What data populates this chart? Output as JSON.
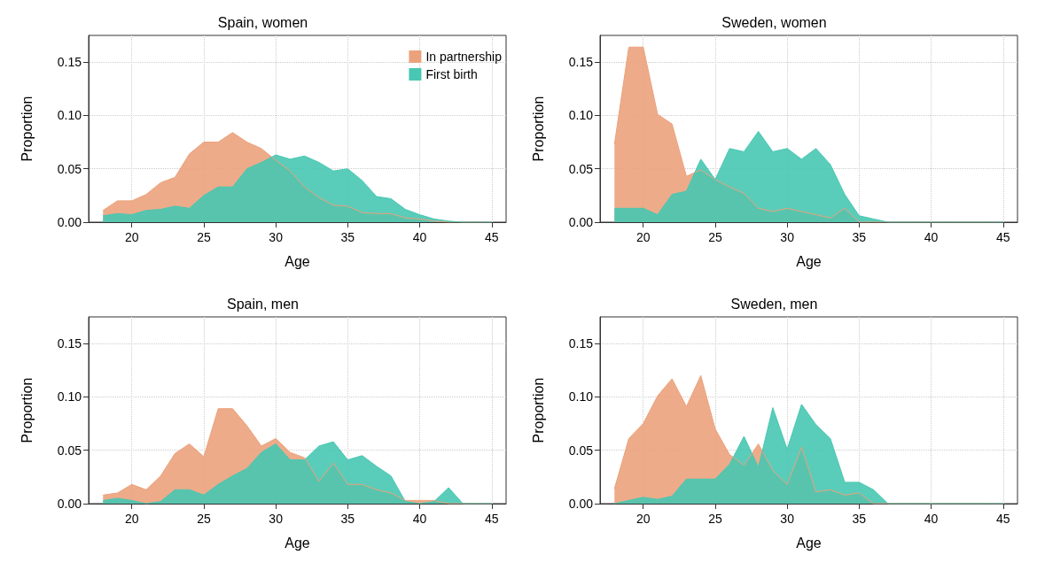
{
  "chart_data": [
    {
      "type": "area",
      "title": "Spain, women",
      "xlabel": "Age",
      "ylabel": "Proportion",
      "xlim": [
        17,
        46
      ],
      "xticks": [
        20,
        25,
        30,
        35,
        40,
        45
      ],
      "ylim": [
        0,
        0.175
      ],
      "yticks": [
        {
          "value": 0,
          "label": "0.00"
        },
        {
          "value": 0.05,
          "label": "0.05"
        },
        {
          "value": 0.1,
          "label": "0.10"
        },
        {
          "value": 0.15,
          "label": "0.15"
        }
      ],
      "grid": true,
      "legend": "top right",
      "x": [
        18,
        19,
        20,
        21,
        22,
        23,
        24,
        25,
        26,
        27,
        28,
        29,
        30,
        31,
        32,
        33,
        34,
        35,
        36,
        37,
        38,
        39,
        40,
        41,
        42,
        43,
        44,
        45
      ],
      "series": [
        {
          "name": "In partnership",
          "color": "#eba27c",
          "values": [
            0.011,
            0.02,
            0.02,
            0.026,
            0.037,
            0.042,
            0.064,
            0.075,
            0.075,
            0.084,
            0.075,
            0.069,
            0.058,
            0.048,
            0.033,
            0.023,
            0.016,
            0.015,
            0.009,
            0.008,
            0.008,
            0.004,
            0.003,
            0.001,
            0,
            0,
            0,
            0
          ]
        },
        {
          "name": "First birth",
          "color": "#48c7b2",
          "values": [
            0.006,
            0.008,
            0.007,
            0.011,
            0.012,
            0.015,
            0.013,
            0.025,
            0.033,
            0.033,
            0.05,
            0.056,
            0.063,
            0.059,
            0.062,
            0.056,
            0.048,
            0.05,
            0.039,
            0.024,
            0.022,
            0.012,
            0.007,
            0.003,
            0.001,
            0,
            0,
            0
          ]
        }
      ]
    },
    {
      "type": "area",
      "title": "Sweden, women",
      "xlabel": "Age",
      "ylabel": "Proportion",
      "xlim": [
        17,
        46
      ],
      "xticks": [
        20,
        25,
        30,
        35,
        40,
        45
      ],
      "ylim": [
        0,
        0.175
      ],
      "yticks": [
        {
          "value": 0,
          "label": "0.00"
        },
        {
          "value": 0.05,
          "label": "0.05"
        },
        {
          "value": 0.1,
          "label": "0.10"
        },
        {
          "value": 0.15,
          "label": "0.15"
        }
      ],
      "grid": true,
      "x": [
        18,
        19,
        20,
        21,
        22,
        23,
        24,
        25,
        26,
        27,
        28,
        29,
        30,
        31,
        32,
        33,
        34,
        35,
        36,
        37,
        38,
        39,
        40,
        41,
        42,
        43,
        44,
        45
      ],
      "series": [
        {
          "color": "#eba27c",
          "values": [
            0.073,
            0.164,
            0.164,
            0.101,
            0.092,
            0.043,
            0.049,
            0.04,
            0.033,
            0.027,
            0.013,
            0.01,
            0.013,
            0.01,
            0.007,
            0.004,
            0.013,
            0,
            0,
            0,
            0,
            0,
            0,
            0,
            0,
            0,
            0,
            0
          ]
        },
        {
          "color": "#48c7b2",
          "values": [
            0.013,
            0.013,
            0.013,
            0.007,
            0.026,
            0.029,
            0.059,
            0.04,
            0.069,
            0.066,
            0.085,
            0.066,
            0.069,
            0.059,
            0.069,
            0.054,
            0.026,
            0.006,
            0.003,
            0,
            0,
            0,
            0,
            0,
            0,
            0,
            0,
            0
          ]
        }
      ]
    },
    {
      "type": "area",
      "title": "Spain, men",
      "xlabel": "Age",
      "ylabel": "Proportion",
      "xlim": [
        17,
        46
      ],
      "xticks": [
        20,
        25,
        30,
        35,
        40,
        45
      ],
      "ylim": [
        0,
        0.175
      ],
      "yticks": [
        {
          "value": 0,
          "label": "0.00"
        },
        {
          "value": 0.05,
          "label": "0.05"
        },
        {
          "value": 0.1,
          "label": "0.10"
        },
        {
          "value": 0.15,
          "label": "0.15"
        }
      ],
      "grid": true,
      "x": [
        18,
        19,
        20,
        21,
        22,
        23,
        24,
        25,
        26,
        27,
        28,
        29,
        30,
        31,
        32,
        33,
        34,
        35,
        36,
        37,
        38,
        39,
        40,
        41,
        42,
        43,
        44,
        45
      ],
      "series": [
        {
          "color": "#eba27c",
          "values": [
            0.008,
            0.01,
            0.018,
            0.013,
            0.026,
            0.047,
            0.056,
            0.044,
            0.089,
            0.089,
            0.073,
            0.054,
            0.061,
            0.048,
            0.043,
            0.021,
            0.038,
            0.018,
            0.018,
            0.013,
            0.01,
            0.003,
            0.003,
            0.003,
            0,
            0,
            0,
            0
          ]
        },
        {
          "color": "#48c7b2",
          "values": [
            0.003,
            0.005,
            0.003,
            0,
            0.002,
            0.013,
            0.013,
            0.008,
            0.018,
            0.026,
            0.033,
            0.048,
            0.056,
            0.041,
            0.041,
            0.054,
            0.058,
            0.041,
            0.045,
            0.035,
            0.026,
            0.002,
            0,
            0.002,
            0.015,
            0,
            0,
            0
          ]
        }
      ]
    },
    {
      "type": "area",
      "title": "Sweden, men",
      "xlabel": "Age",
      "ylabel": "Proportion",
      "xlim": [
        17,
        46
      ],
      "xticks": [
        20,
        25,
        30,
        35,
        40,
        45
      ],
      "ylim": [
        0,
        0.175
      ],
      "yticks": [
        {
          "value": 0,
          "label": "0.00"
        },
        {
          "value": 0.05,
          "label": "0.05"
        },
        {
          "value": 0.1,
          "label": "0.10"
        },
        {
          "value": 0.15,
          "label": "0.15"
        }
      ],
      "grid": true,
      "x": [
        18,
        19,
        20,
        21,
        22,
        23,
        24,
        25,
        26,
        27,
        28,
        29,
        30,
        31,
        32,
        33,
        34,
        35,
        36,
        37,
        38,
        39,
        40,
        41,
        42,
        43,
        44,
        45
      ],
      "series": [
        {
          "color": "#eba27c",
          "values": [
            0.014,
            0.061,
            0.075,
            0.101,
            0.117,
            0.091,
            0.12,
            0.07,
            0.046,
            0.036,
            0.056,
            0.031,
            0.018,
            0.053,
            0.011,
            0.013,
            0.008,
            0.01,
            0,
            0,
            0,
            0,
            0,
            0,
            0,
            0,
            0,
            0
          ]
        },
        {
          "color": "#48c7b2",
          "values": [
            0,
            0.003,
            0.006,
            0.004,
            0.007,
            0.023,
            0.023,
            0.023,
            0.037,
            0.063,
            0.034,
            0.09,
            0.051,
            0.093,
            0.074,
            0.061,
            0.02,
            0.02,
            0.013,
            0,
            0,
            0,
            0,
            0,
            0,
            0,
            0,
            0
          ]
        }
      ]
    }
  ]
}
